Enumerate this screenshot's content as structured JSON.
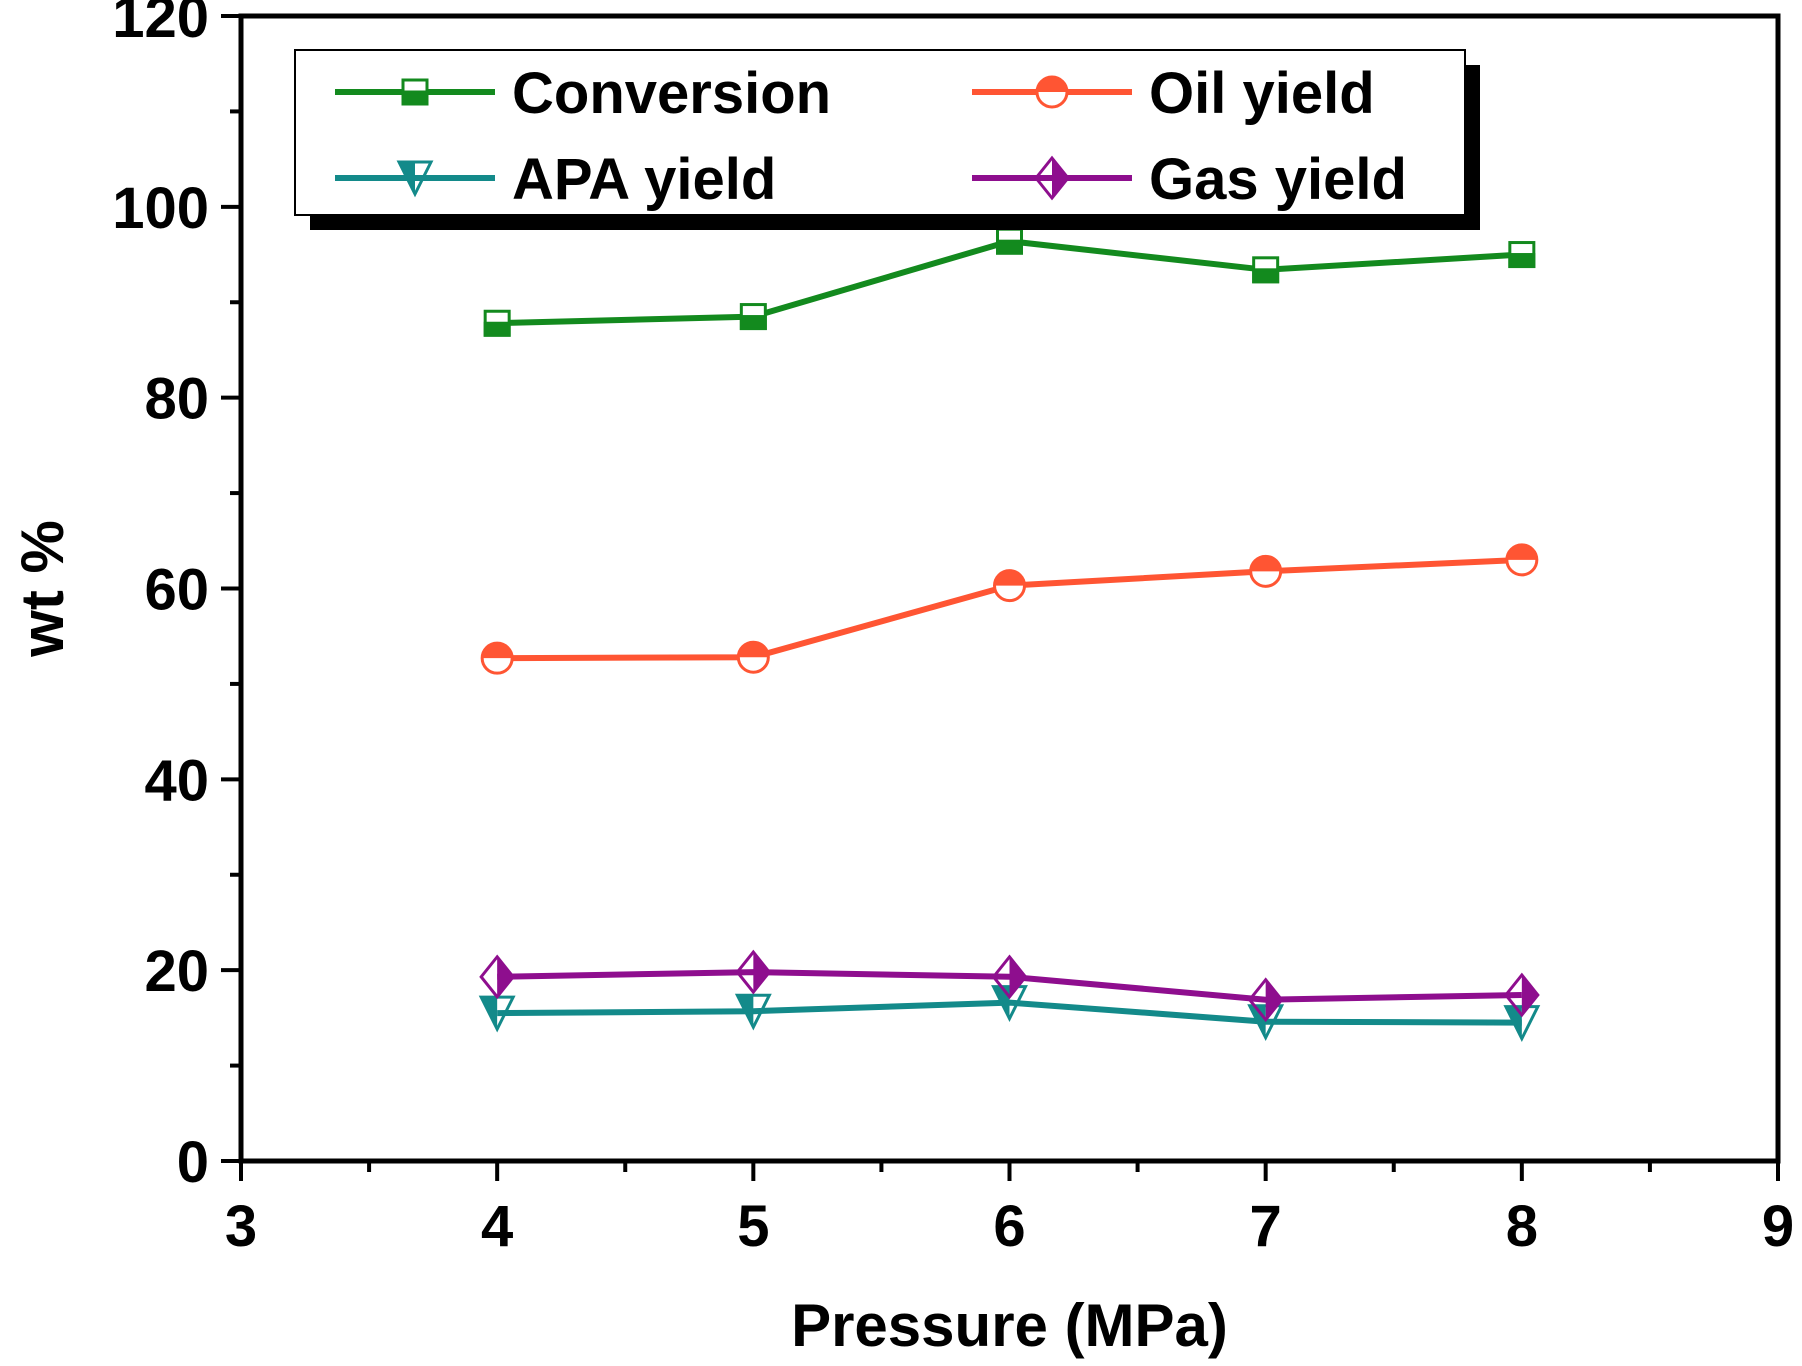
{
  "chart_data": {
    "type": "line",
    "xlabel": "Pressure (MPa)",
    "ylabel": "wt %",
    "xlim": [
      3,
      9
    ],
    "ylim": [
      0,
      120
    ],
    "xticks": [
      3,
      4,
      5,
      6,
      7,
      8,
      9
    ],
    "yticks": [
      0,
      20,
      40,
      60,
      80,
      100,
      120
    ],
    "x_minor_step": 0.5,
    "y_minor_step": 10,
    "grid": false,
    "legend": {
      "placement": "top",
      "columns": 2,
      "frame": "shadowed box"
    },
    "x": [
      4,
      5,
      6,
      7,
      8
    ],
    "series": [
      {
        "name": "Conversion",
        "color": "#138a1e",
        "marker": "square-half-filled-bottom",
        "values": [
          87.8,
          88.5,
          96.4,
          93.4,
          95.0
        ]
      },
      {
        "name": "Oil yield",
        "color": "#ff5533",
        "marker": "circle-half-filled-top",
        "values": [
          52.7,
          52.8,
          60.3,
          61.8,
          63.0
        ]
      },
      {
        "name": "APA yield",
        "color": "#138a8a",
        "marker": "triangle-down-half-filled-left",
        "values": [
          15.5,
          15.7,
          16.6,
          14.6,
          14.5
        ]
      },
      {
        "name": "Gas yield",
        "color": "#8e0e8e",
        "marker": "diamond-half-filled-right",
        "values": [
          19.3,
          19.8,
          19.3,
          16.9,
          17.4
        ]
      }
    ]
  }
}
